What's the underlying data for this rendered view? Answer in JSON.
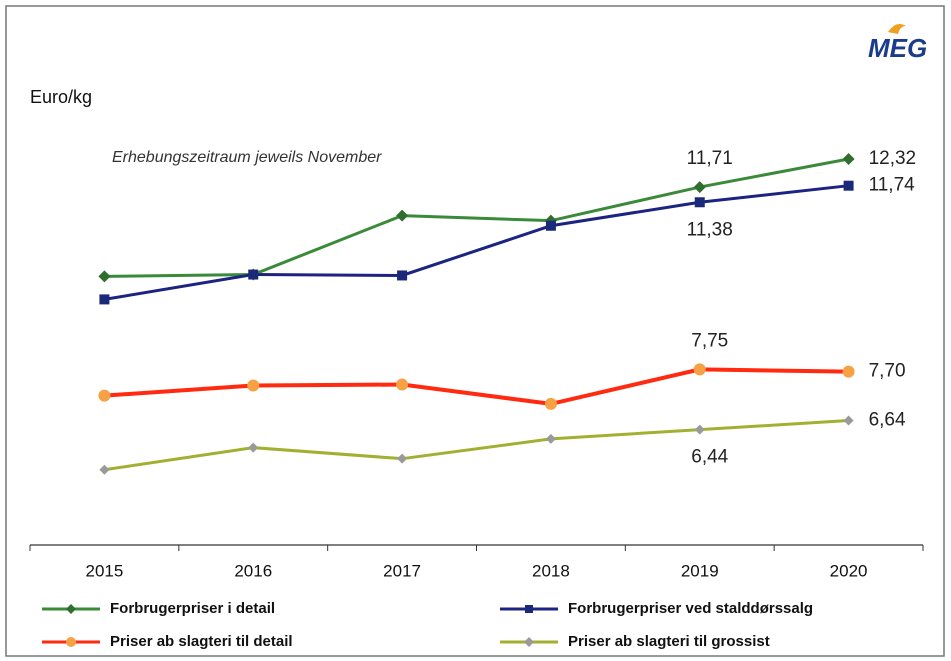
{
  "chart_data": {
    "type": "line",
    "logo": "MEG",
    "ylabel": "Euro/kg",
    "annotation": "Erhebungszeitraum jeweils November",
    "categories": [
      "2015",
      "2016",
      "2017",
      "2018",
      "2019",
      "2020"
    ],
    "ylim": [
      4,
      15.6
    ],
    "series": [
      {
        "name": "Forbrugerpriser i detail",
        "color": "#3a8a3a",
        "marker_color": "#2f6e2f",
        "marker": "diamond",
        "values": [
          9.77,
          9.81,
          11.09,
          10.98,
          11.71,
          12.32
        ],
        "value_labels": [
          null,
          null,
          null,
          null,
          "11,71",
          "12,32"
        ]
      },
      {
        "name": "Forbrugerpriser ved stalddørssalg",
        "color": "#1c2380",
        "marker_color": "#1a2a78",
        "marker": "square",
        "values": [
          9.27,
          9.81,
          9.79,
          10.87,
          11.38,
          11.74
        ],
        "value_labels": [
          null,
          null,
          null,
          null,
          "11,38",
          "11,74"
        ]
      },
      {
        "name": "Priser ab slagteri til detail",
        "color": "#ff2a10",
        "marker_color": "#f6a145",
        "marker": "circle",
        "values": [
          7.18,
          7.4,
          7.42,
          7.0,
          7.75,
          7.7
        ],
        "value_labels": [
          null,
          null,
          null,
          null,
          "7,75",
          "7,70"
        ]
      },
      {
        "name": "Priser ab slagteri til grossist",
        "color": "#a2b032",
        "marker_color": "#9a9a9a",
        "marker": "diamond",
        "values": [
          5.57,
          6.05,
          5.81,
          6.24,
          6.44,
          6.64
        ],
        "value_labels": [
          null,
          null,
          null,
          null,
          "6,44",
          "6,64"
        ]
      }
    ]
  }
}
